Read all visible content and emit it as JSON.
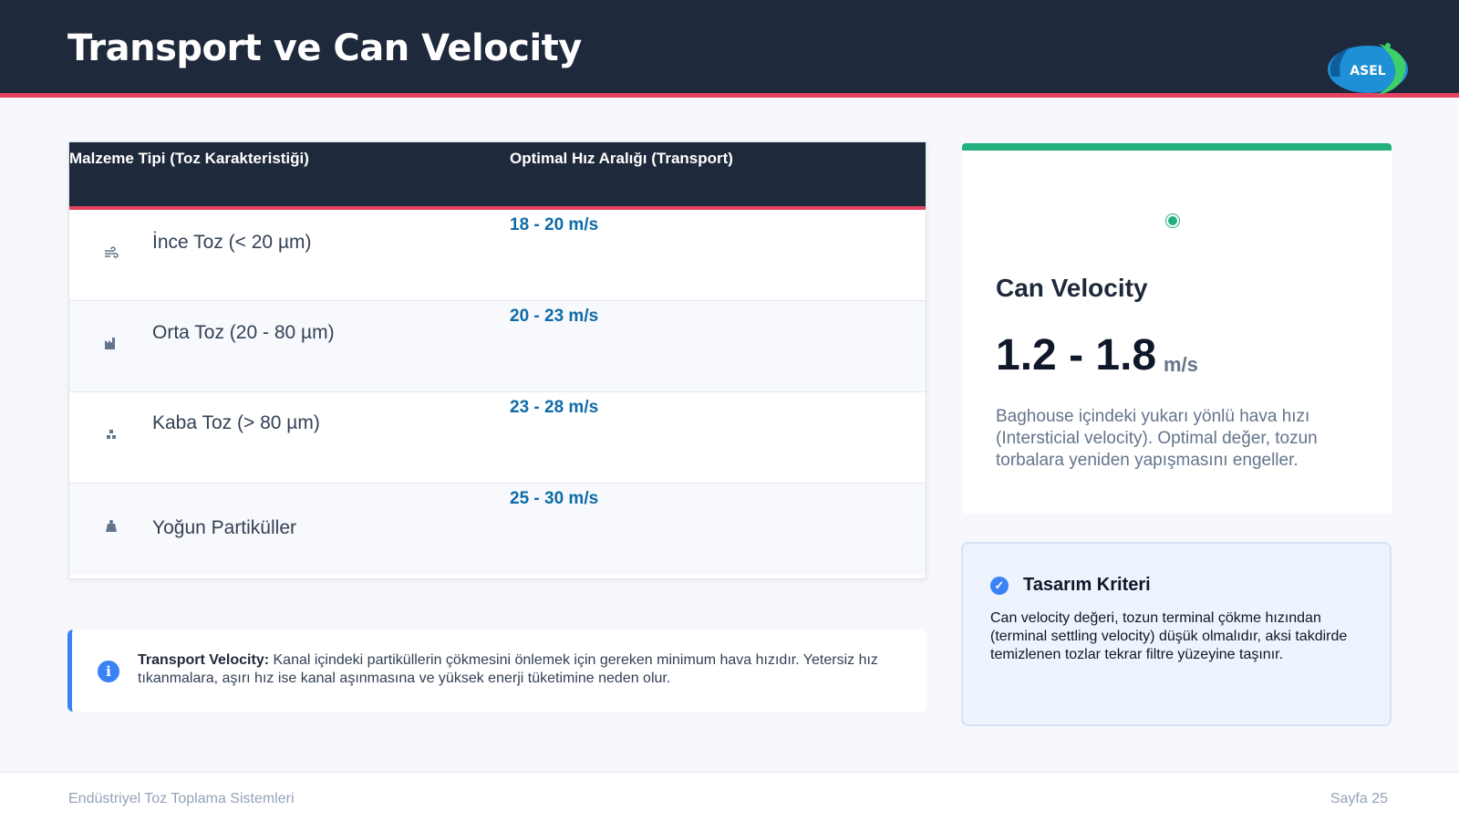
{
  "header": {
    "title": "Transport ve Can Velocity",
    "logo_text": "ASEL"
  },
  "table": {
    "columns": [
      "Malzeme Tipi (Toz Karakteristiği)",
      "Optimal Hız Aralığı (Transport)"
    ],
    "rows": [
      {
        "icon": "wind-icon",
        "label": "İnce Toz (< 20 µm)",
        "value": "18 - 20 m/s"
      },
      {
        "icon": "industry-icon",
        "label": "Orta Toz (20 - 80 µm)",
        "value": "20 - 23 m/s"
      },
      {
        "icon": "cubes-icon",
        "label": "Kaba Toz (> 80 µm)",
        "value": "23 - 28 m/s"
      },
      {
        "icon": "weight-icon",
        "label": "Yoğun Partiküller",
        "value": "25 - 30 m/s"
      }
    ]
  },
  "info": {
    "label": "Transport Velocity:",
    "text": "Kanal içindeki partiküllerin çökmesini önlemek için gereken minimum hava hızıdır. Yetersiz hız tıkanmalara, aşırı hız ise kanal aşınmasına ve yüksek enerji tüketimine neden olur."
  },
  "can_velocity": {
    "title": "Can Velocity",
    "value": "1.2 - 1.8",
    "unit": "m/s",
    "description": "Baghouse içindeki yukarı yönlü hava hızı (Intersticial velocity). Optimal değer, tozun torbalara yeniden yapışmasını engeller."
  },
  "criteria": {
    "title": "Tasarım Kriteri",
    "text": "Can velocity değeri, tozun terminal çökme hızından (terminal settling velocity) düşük olmalıdır, aksi takdirde temizlenen tozlar tekrar filtre yüzeyine taşınır."
  },
  "footer": {
    "left": "Endüstriyel Toz Toplama Sistemleri",
    "right": "Sayfa 25"
  },
  "colors": {
    "header_bg": "#1e293b",
    "accent_red": "#e5425f",
    "accent_green": "#22b07d",
    "accent_blue": "#3b82f6",
    "value_blue": "#0e6ba8"
  }
}
